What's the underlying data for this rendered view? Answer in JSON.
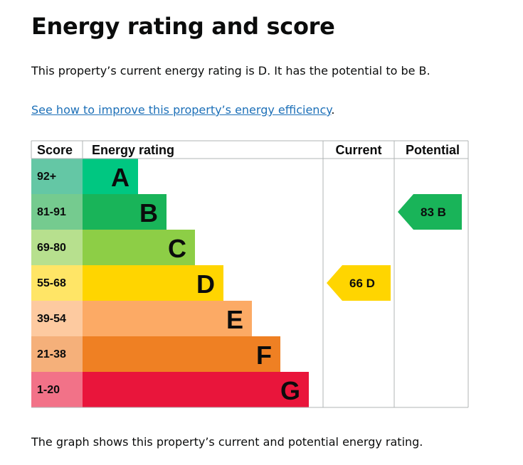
{
  "page": {
    "title": "Energy rating and score",
    "intro": "This property’s current energy rating is D. It has the potential to be B.",
    "link_text": "See how to improve this property’s energy efficiency",
    "link_suffix": ".",
    "footer": "The graph shows this property’s current and potential energy rating."
  },
  "table": {
    "headers": {
      "score": "Score",
      "rating": "Energy rating",
      "current": "Current",
      "potential": "Potential"
    },
    "bands": [
      {
        "letter": "A",
        "range": "92+",
        "color": "#008054",
        "score_bg": "#64c7a5"
      },
      {
        "letter": "B",
        "range": "81-91",
        "color": "#19b459",
        "score_bg": "#75cb8f"
      },
      {
        "letter": "C",
        "range": "69-80",
        "color": "#8dce46",
        "score_bg": "#b7e08e"
      },
      {
        "letter": "D",
        "range": "55-68",
        "color": "#ffd500",
        "score_bg": "#ffe566"
      },
      {
        "letter": "E",
        "range": "39-54",
        "color": "#fcaa65",
        "score_bg": "#fdcaa0"
      },
      {
        "letter": "F",
        "range": "21-38",
        "color": "#ef8023",
        "score_bg": "#f5b07a"
      },
      {
        "letter": "G",
        "range": "1-20",
        "color": "#e9153b",
        "score_bg": "#f27288"
      }
    ],
    "current": {
      "score": 66,
      "band": "D",
      "label": "66  D"
    },
    "potential": {
      "score": 83,
      "band": "B",
      "label": "83  B"
    }
  },
  "colors": {
    "band_a_main": "#00c781",
    "link": "#1d70b8",
    "text": "#0b0c0c"
  }
}
